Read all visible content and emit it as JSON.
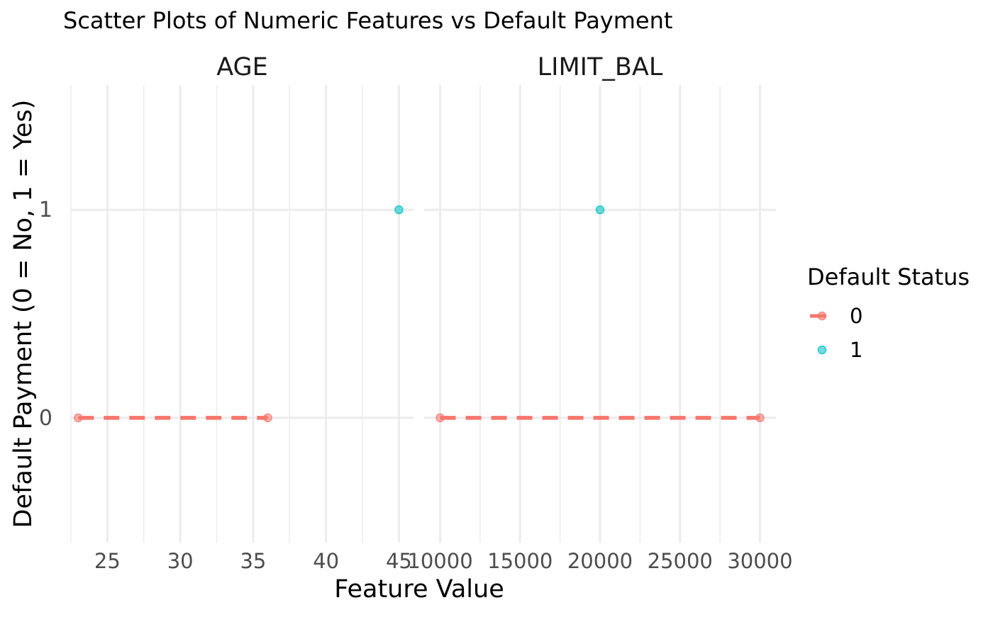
{
  "chart_data": {
    "type": "scatter",
    "title": "Scatter Plots of Numeric Features vs Default Payment",
    "xlabel": "Feature Value",
    "ylabel": "Default Payment (0 = No, 1 = Yes)",
    "grid": true,
    "ylim": [
      -0.6,
      1.6
    ],
    "y_ticks": [
      0,
      1
    ],
    "legend": {
      "title": "Default Status",
      "position": "right",
      "entries": [
        {
          "label": "0",
          "color": "#F8766D"
        },
        {
          "label": "1",
          "color": "#00BFC4"
        }
      ]
    },
    "panels": [
      {
        "name": "AGE",
        "xlim": [
          22.5,
          46
        ],
        "x_ticks": [
          25,
          30,
          35,
          40,
          45
        ],
        "points": [
          {
            "x": 23,
            "y": 0,
            "group": "0"
          },
          {
            "x": 36,
            "y": 0,
            "group": "0"
          },
          {
            "x": 45,
            "y": 1,
            "group": "1"
          }
        ],
        "trend_lines": [
          {
            "group": "0",
            "x": [
              23,
              36
            ],
            "y": [
              0,
              0
            ]
          }
        ]
      },
      {
        "name": "LIMIT_BAL",
        "xlim": [
          9000,
          31000
        ],
        "x_ticks": [
          10000,
          15000,
          20000,
          25000,
          30000
        ],
        "points": [
          {
            "x": 10000,
            "y": 0,
            "group": "0"
          },
          {
            "x": 30000,
            "y": 0,
            "group": "0"
          },
          {
            "x": 20000,
            "y": 1,
            "group": "1"
          }
        ],
        "trend_lines": [
          {
            "group": "0",
            "x": [
              10000,
              30000
            ],
            "y": [
              0,
              0
            ]
          }
        ]
      }
    ]
  }
}
